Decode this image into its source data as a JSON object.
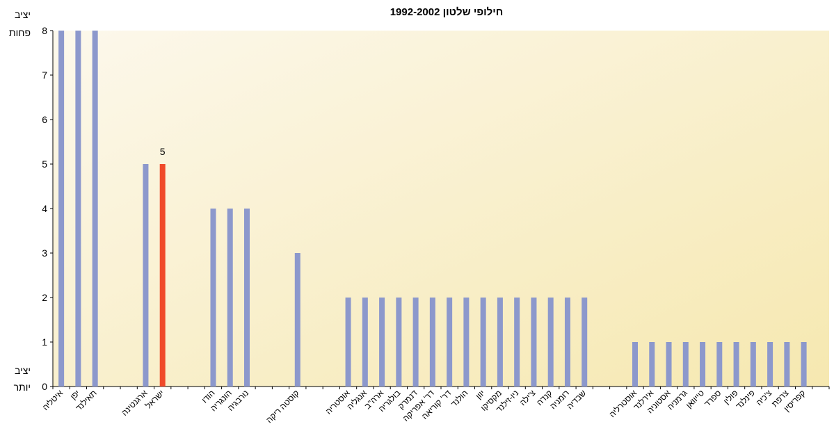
{
  "chart_data": {
    "type": "bar",
    "title": "חילופי שלטון 1992-2002",
    "y_top_label": [
      "יציב",
      "פחות"
    ],
    "y_bottom_label": [
      "יציב",
      "יותר"
    ],
    "ylim": [
      0,
      8
    ],
    "y_ticks": [
      "0",
      "1",
      "2",
      "3",
      "4",
      "5",
      "6",
      "7",
      "8"
    ],
    "grid": false,
    "colors": {
      "bar": "#8c98cc",
      "highlight": "#f04a2a",
      "plot_bg_light": "#fbf4e1",
      "plot_bg_dark": "#f7e9b4"
    },
    "categories": [
      "איטליה",
      "יפן",
      "תאילנד",
      "",
      "",
      "ארגנטינה",
      "ישראל",
      "",
      "",
      "הודו",
      "הונגריה",
      "נורבגיה",
      "",
      "",
      "קוסטה ריקה",
      "",
      "",
      "אוסטריה",
      "אנגליה",
      "ארה\"ב",
      "בולגריה",
      "דנמרק",
      "דר' אפריקה",
      "דר' קוריאה",
      "הולנד",
      "יוון",
      "מקסיקו",
      "ניו-זילנד",
      "צ'ילה",
      "קנדה",
      "רומניה",
      "שבדיה",
      "",
      "",
      "אוסטרליה",
      "אירלנד",
      "אסטוניה",
      "גרמניה",
      "טייוואן",
      "ספרד",
      "פולין",
      "פינלנד",
      "צ'כיה",
      "צרפת",
      "קפריסין",
      ""
    ],
    "values": [
      8,
      8,
      8,
      null,
      null,
      5,
      5,
      null,
      null,
      4,
      4,
      4,
      null,
      null,
      3,
      null,
      null,
      2,
      2,
      2,
      2,
      2,
      2,
      2,
      2,
      2,
      2,
      2,
      2,
      2,
      2,
      2,
      null,
      null,
      1,
      1,
      1,
      1,
      1,
      1,
      1,
      1,
      1,
      1,
      1,
      null
    ],
    "highlight": "ישראל",
    "data_labels": [
      {
        "category": "ישראל",
        "text": "5"
      }
    ]
  }
}
